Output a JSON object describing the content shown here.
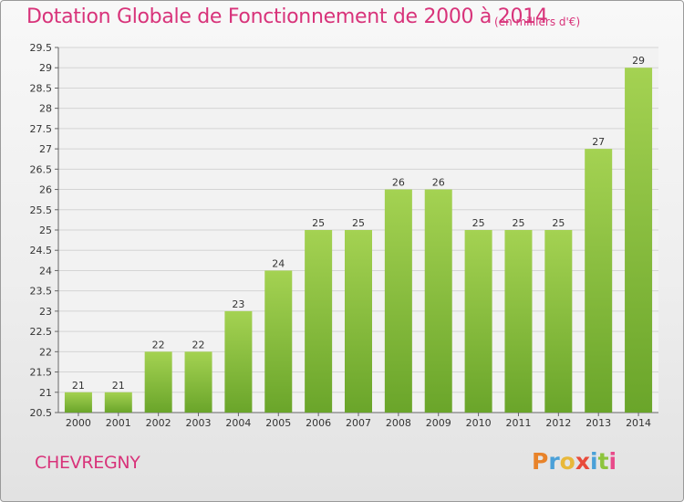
{
  "header": {
    "title": "Dotation Globale de Fonctionnement de 2000 à 2014",
    "unit": "(en milliers d'€)"
  },
  "footer": {
    "commune": "CHEVREGNY",
    "logo": {
      "letters": [
        "P",
        "r",
        "o",
        "x",
        "i",
        "t",
        "i"
      ],
      "colors": [
        "#e8832a",
        "#4aa0d8",
        "#e8b83a",
        "#e84a3a",
        "#4aa0d8",
        "#8cc43c",
        "#e84a8a"
      ]
    }
  },
  "colors": {
    "title": "#d8337a",
    "bar_top": "#a4d252",
    "bar_bottom": "#6aa52a",
    "text": "#333333"
  },
  "chart_data": {
    "type": "bar",
    "title": "Dotation Globale de Fonctionnement de 2000 à 2014",
    "categories": [
      "2000",
      "2001",
      "2002",
      "2003",
      "2004",
      "2005",
      "2006",
      "2007",
      "2008",
      "2009",
      "2010",
      "2011",
      "2012",
      "2013",
      "2014"
    ],
    "values": [
      21,
      21,
      22,
      22,
      23,
      24,
      25,
      25,
      26,
      26,
      25,
      25,
      25,
      27,
      29
    ],
    "ylim": [
      20.5,
      29.5
    ],
    "ytick_step": 0.5,
    "grid": true,
    "xlabel": "",
    "ylabel": ""
  }
}
